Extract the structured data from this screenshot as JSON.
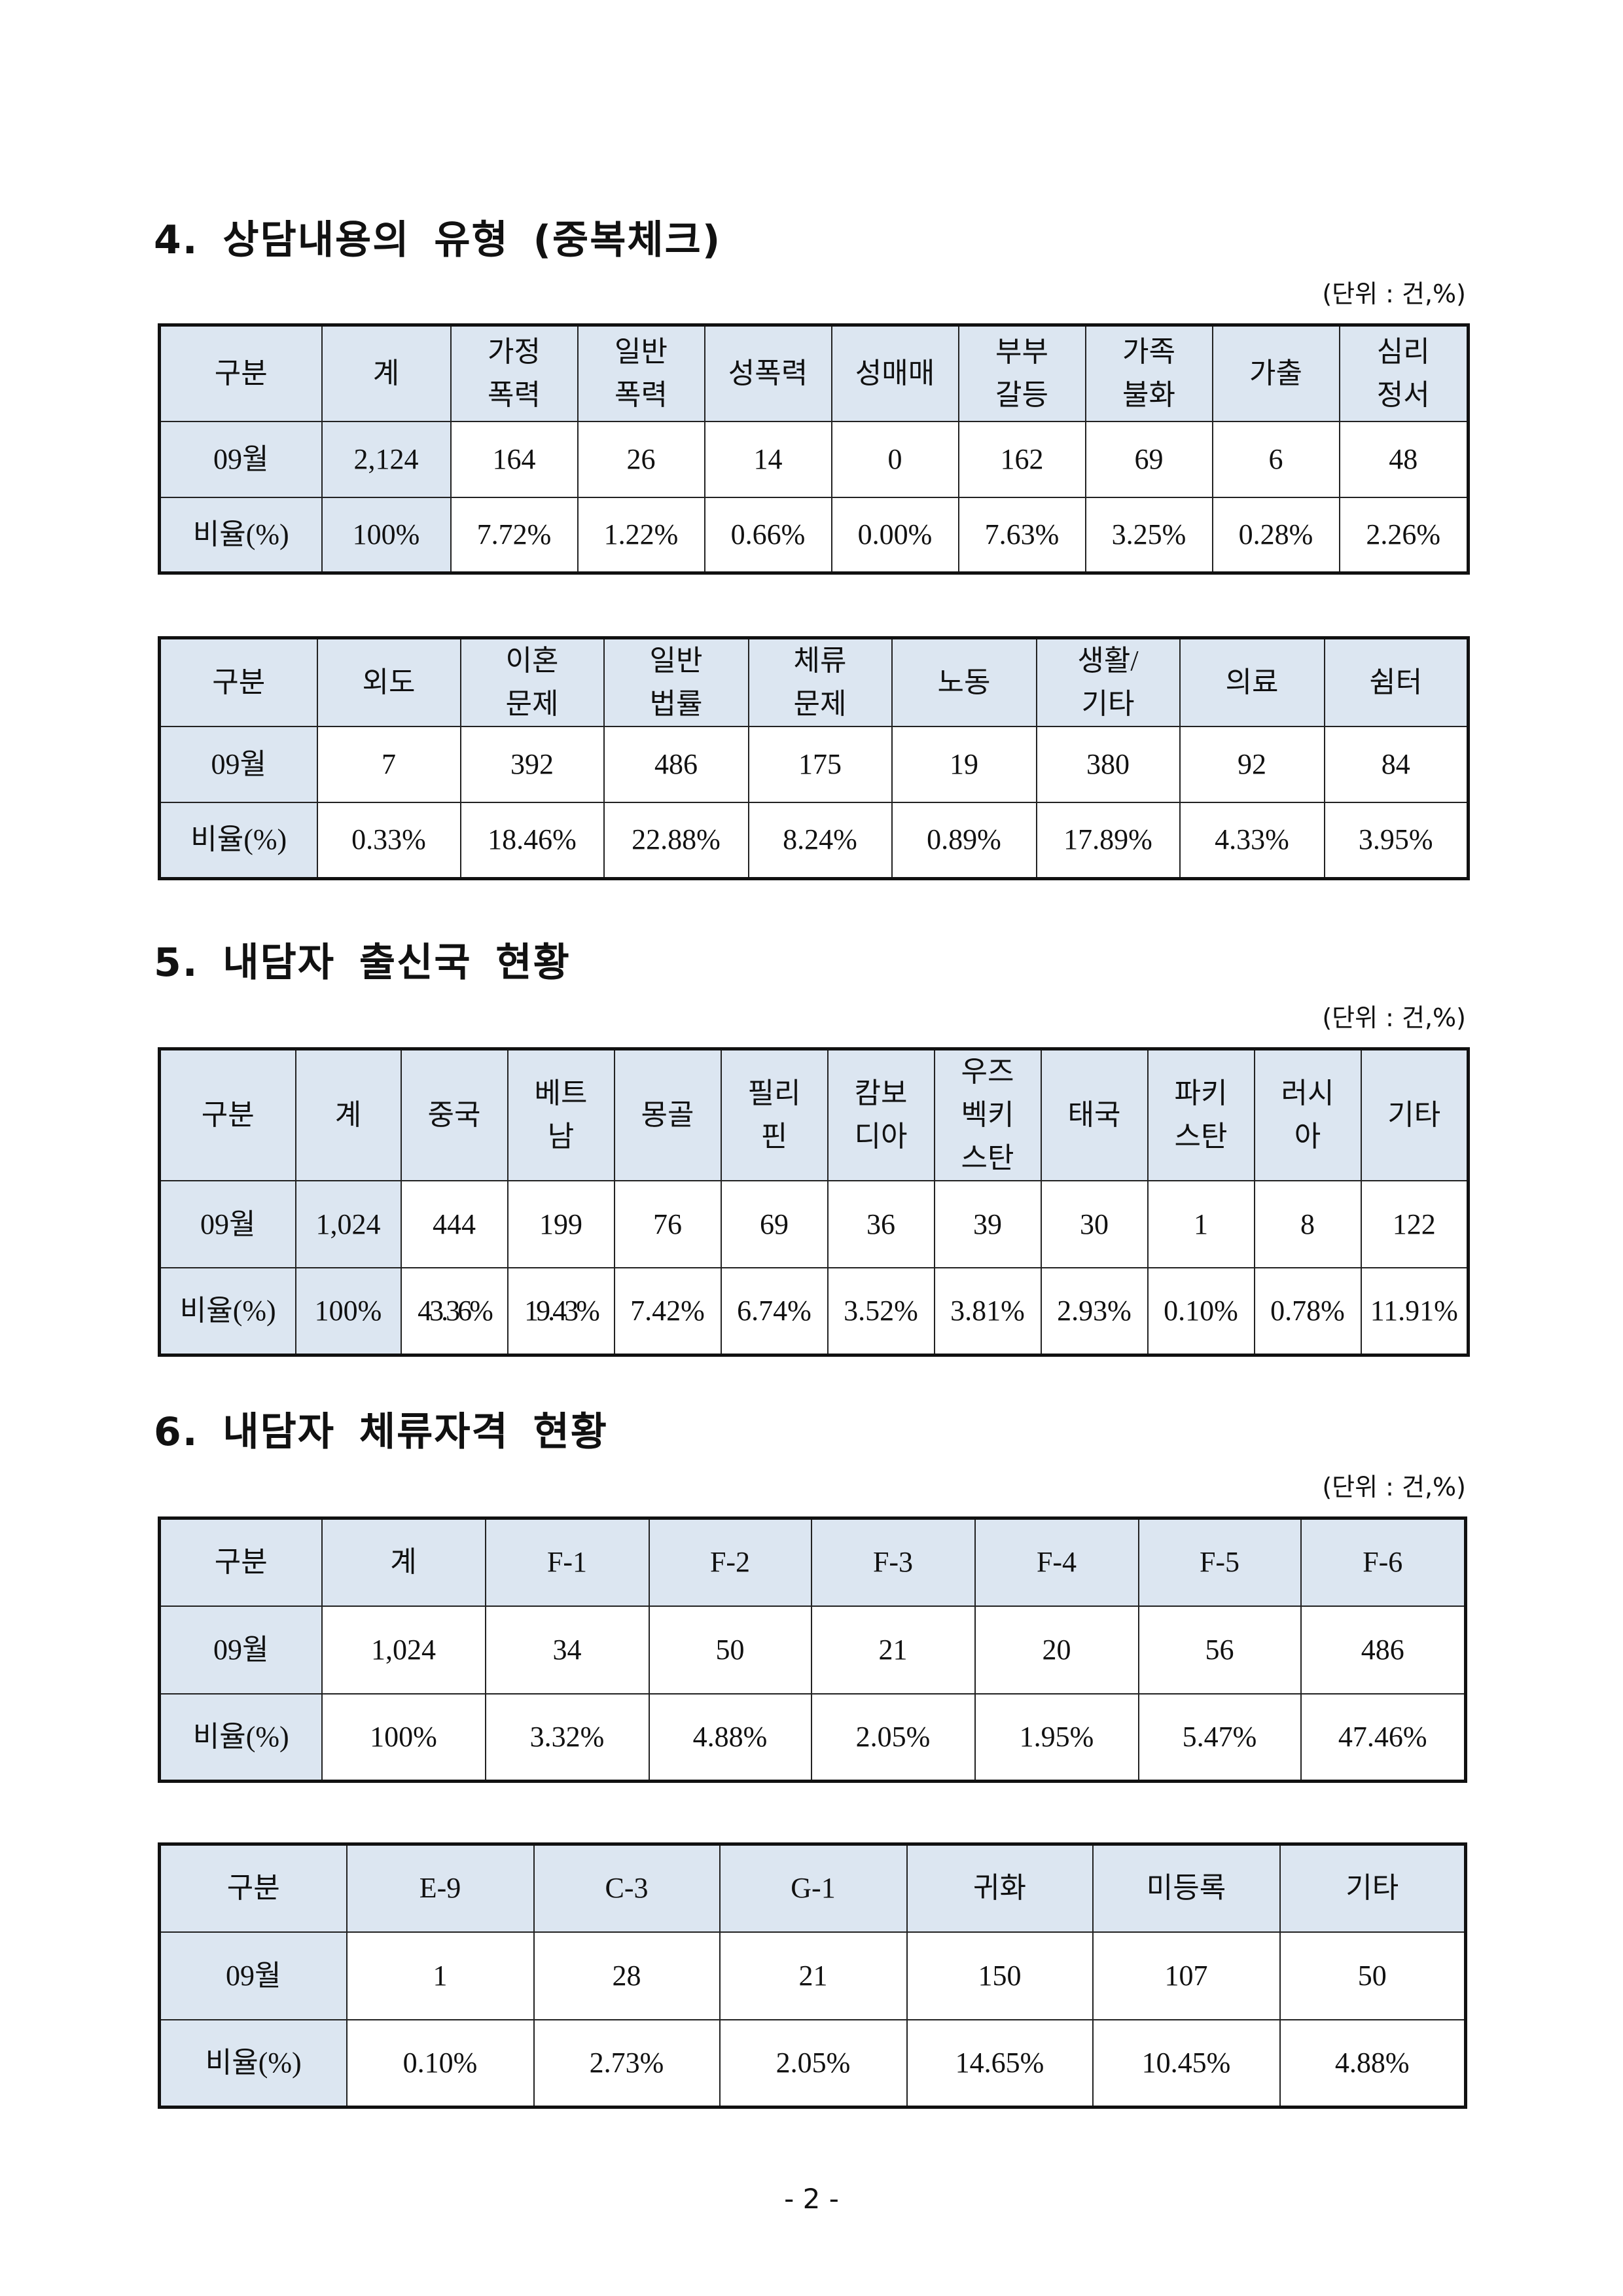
{
  "unit_label": "(단위 : 건,%)",
  "sections": {
    "s4": {
      "title": "4. 상담내용의 유형 (중복체크)"
    },
    "s5": {
      "title": "5. 내담자 출신국 현황"
    },
    "s6": {
      "title": "6. 내담자 체류자격 현황"
    }
  },
  "tables": {
    "t1": {
      "header": [
        "구분",
        "계",
        "가정\n폭력",
        "일반\n폭력",
        "성폭력",
        "성매매",
        "부부\n갈등",
        "가족\n불화",
        "가출",
        "심리\n정서"
      ],
      "rows": [
        [
          "09월",
          "2,124",
          "164",
          "26",
          "14",
          "0",
          "162",
          "69",
          "6",
          "48"
        ],
        [
          "비율(%)",
          "100%",
          "7.72%",
          "1.22%",
          "0.66%",
          "0.00%",
          "7.63%",
          "3.25%",
          "0.28%",
          "2.26%"
        ]
      ]
    },
    "t2": {
      "header": [
        "구분",
        "외도",
        "이혼\n문제",
        "일반\n법률",
        "체류\n문제",
        "노동",
        "생활/\n기타",
        "의료",
        "쉼터"
      ],
      "rows": [
        [
          "09월",
          "7",
          "392",
          "486",
          "175",
          "19",
          "380",
          "92",
          "84"
        ],
        [
          "비율(%)",
          "0.33%",
          "18.46%",
          "22.88%",
          "8.24%",
          "0.89%",
          "17.89%",
          "4.33%",
          "3.95%"
        ]
      ]
    },
    "t3": {
      "header": [
        "구분",
        "계",
        "중국",
        "베트\n남",
        "몽골",
        "필리\n핀",
        "캄보\n디아",
        "우즈\n벡키\n스탄",
        "태국",
        "파키\n스탄",
        "러시\n아",
        "기타"
      ],
      "rows": [
        [
          "09월",
          "1,024",
          "444",
          "199",
          "76",
          "69",
          "36",
          "39",
          "30",
          "1",
          "8",
          "122"
        ],
        [
          "비율(%)",
          "100%",
          "43.36%",
          "19.43%",
          "7.42%",
          "6.74%",
          "3.52%",
          "3.81%",
          "2.93%",
          "0.10%",
          "0.78%",
          "11.91%"
        ]
      ]
    },
    "t4": {
      "header": [
        "구분",
        "계",
        "F-1",
        "F-2",
        "F-3",
        "F-4",
        "F-5",
        "F-6"
      ],
      "rows": [
        [
          "09월",
          "1,024",
          "34",
          "50",
          "21",
          "20",
          "56",
          "486"
        ],
        [
          "비율(%)",
          "100%",
          "3.32%",
          "4.88%",
          "2.05%",
          "1.95%",
          "5.47%",
          "47.46%"
        ]
      ]
    },
    "t5": {
      "header": [
        "구분",
        "E-9",
        "C-3",
        "G-1",
        "귀화",
        "미등록",
        "기타"
      ],
      "rows": [
        [
          "09월",
          "1",
          "28",
          "21",
          "150",
          "107",
          "50"
        ],
        [
          "비율(%)",
          "0.10%",
          "2.73%",
          "2.05%",
          "14.65%",
          "10.45%",
          "4.88%"
        ]
      ]
    }
  },
  "page_number": "- 2 -",
  "colors": {
    "header_fill": "#dce6f1",
    "border": "#111111"
  }
}
